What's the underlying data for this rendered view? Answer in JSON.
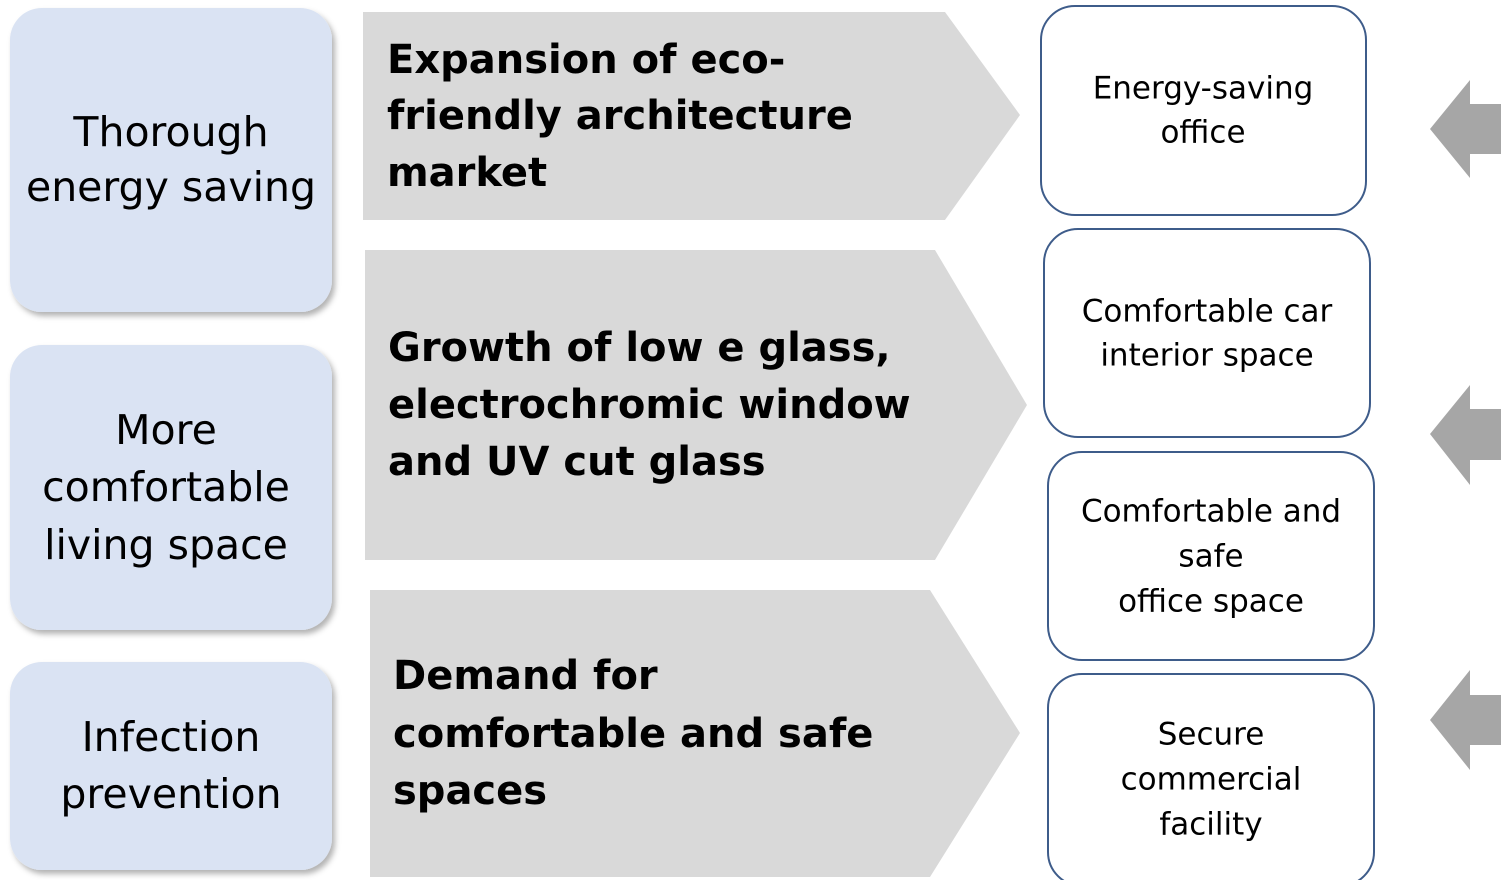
{
  "drivers": [
    {
      "lines": [
        "Thorough",
        "energy saving"
      ]
    },
    {
      "lines": [
        "More",
        "comfortable",
        "living space"
      ]
    },
    {
      "lines": [
        "Infection",
        "prevention"
      ]
    }
  ],
  "trends": [
    {
      "lines": [
        "Expansion of eco-",
        "friendly architecture",
        "market"
      ]
    },
    {
      "lines": [
        "Growth of low e glass,",
        "electrochromic window",
        "and UV cut glass"
      ]
    },
    {
      "lines": [
        "Demand for",
        "comfortable and safe",
        "spaces"
      ]
    }
  ],
  "applications": [
    {
      "lines": [
        "Energy-saving",
        "office"
      ]
    },
    {
      "lines": [
        "Comfortable car",
        "interior space"
      ]
    },
    {
      "lines": [
        "Comfortable and",
        "safe",
        "office space"
      ]
    },
    {
      "lines": [
        "Secure",
        "commercial",
        "facility"
      ]
    }
  ]
}
